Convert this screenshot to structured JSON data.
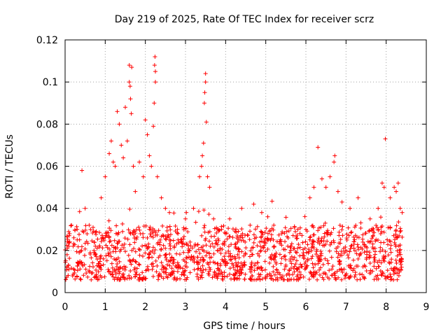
{
  "chart_data": {
    "type": "scatter",
    "title": "Day 219 of 2025, Rate Of TEC Index for receiver scrz",
    "xlabel": "GPS time / hours",
    "ylabel": "ROTI / TECUs",
    "xlim": [
      0,
      9
    ],
    "ylim": [
      0,
      0.12
    ],
    "x_ticks": [
      0,
      1,
      2,
      3,
      4,
      5,
      6,
      7,
      8,
      9
    ],
    "y_ticks": [
      0,
      0.02,
      0.04,
      0.06,
      0.08,
      0.1,
      0.12
    ],
    "x_tick_labels": [
      "0",
      "1",
      "2",
      "3",
      "4",
      "5",
      "6",
      "7",
      "8",
      "9"
    ],
    "y_tick_labels": [
      "0",
      "0.02",
      "0.04",
      "0.06",
      "0.08",
      "0.1",
      "0.12"
    ],
    "grid": true,
    "marker": "+",
    "marker_color": "#ff0000",
    "x_data_range": [
      0,
      8.4
    ],
    "baseline_roti_range": [
      0.006,
      0.032
    ],
    "series": [
      {
        "name": "ROTI",
        "points": [
          [
            0.05,
            0.018
          ],
          [
            0.2,
            0.022
          ],
          [
            0.3,
            0.03
          ],
          [
            0.42,
            0.058
          ],
          [
            0.5,
            0.04
          ],
          [
            0.6,
            0.032
          ],
          [
            0.72,
            0.02
          ],
          [
            0.9,
            0.045
          ],
          [
            1.0,
            0.055
          ],
          [
            1.1,
            0.066
          ],
          [
            1.15,
            0.072
          ],
          [
            1.2,
            0.062
          ],
          [
            1.25,
            0.06
          ],
          [
            1.3,
            0.086
          ],
          [
            1.35,
            0.08
          ],
          [
            1.4,
            0.07
          ],
          [
            1.45,
            0.064
          ],
          [
            1.5,
            0.088
          ],
          [
            1.55,
            0.072
          ],
          [
            1.6,
            0.108
          ],
          [
            1.6,
            0.1
          ],
          [
            1.62,
            0.098
          ],
          [
            1.63,
            0.092
          ],
          [
            1.65,
            0.085
          ],
          [
            1.66,
            0.107
          ],
          [
            1.7,
            0.06
          ],
          [
            1.75,
            0.048
          ],
          [
            1.85,
            0.062
          ],
          [
            1.95,
            0.055
          ],
          [
            2.0,
            0.082
          ],
          [
            2.05,
            0.075
          ],
          [
            2.1,
            0.065
          ],
          [
            2.15,
            0.06
          ],
          [
            2.2,
            0.079
          ],
          [
            2.22,
            0.09
          ],
          [
            2.23,
            0.108
          ],
          [
            2.24,
            0.112
          ],
          [
            2.25,
            0.1
          ],
          [
            2.25,
            0.105
          ],
          [
            2.3,
            0.055
          ],
          [
            2.4,
            0.045
          ],
          [
            2.5,
            0.04
          ],
          [
            2.6,
            0.038
          ],
          [
            2.8,
            0.03
          ],
          [
            3.0,
            0.035
          ],
          [
            3.2,
            0.04
          ],
          [
            3.35,
            0.055
          ],
          [
            3.4,
            0.06
          ],
          [
            3.42,
            0.065
          ],
          [
            3.45,
            0.071
          ],
          [
            3.47,
            0.09
          ],
          [
            3.48,
            0.095
          ],
          [
            3.5,
            0.1
          ],
          [
            3.5,
            0.104
          ],
          [
            3.52,
            0.081
          ],
          [
            3.55,
            0.055
          ],
          [
            3.6,
            0.05
          ],
          [
            3.7,
            0.035
          ],
          [
            3.9,
            0.03
          ],
          [
            4.1,
            0.035
          ],
          [
            4.4,
            0.04
          ],
          [
            4.7,
            0.042
          ],
          [
            4.9,
            0.038
          ],
          [
            5.05,
            0.036
          ],
          [
            5.2,
            0.032
          ],
          [
            5.4,
            0.028
          ],
          [
            5.8,
            0.03
          ],
          [
            6.0,
            0.03
          ],
          [
            6.1,
            0.045
          ],
          [
            6.2,
            0.05
          ],
          [
            6.3,
            0.069
          ],
          [
            6.4,
            0.054
          ],
          [
            6.5,
            0.05
          ],
          [
            6.6,
            0.055
          ],
          [
            6.7,
            0.062
          ],
          [
            6.72,
            0.065
          ],
          [
            6.8,
            0.048
          ],
          [
            6.9,
            0.043
          ],
          [
            7.1,
            0.04
          ],
          [
            7.3,
            0.045
          ],
          [
            7.6,
            0.035
          ],
          [
            7.8,
            0.04
          ],
          [
            7.9,
            0.052
          ],
          [
            7.95,
            0.05
          ],
          [
            7.98,
            0.073
          ],
          [
            8.1,
            0.045
          ],
          [
            8.2,
            0.05
          ],
          [
            8.25,
            0.048
          ],
          [
            8.3,
            0.052
          ],
          [
            8.35,
            0.04
          ],
          [
            8.4,
            0.038
          ]
        ]
      }
    ]
  }
}
